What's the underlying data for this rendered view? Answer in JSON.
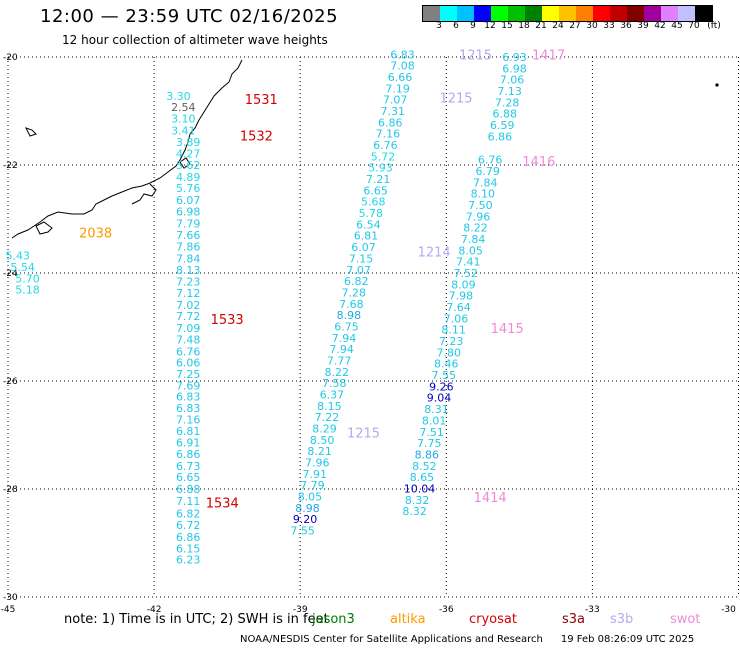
{
  "header": {
    "title": "12:00 — 23:59 UTC 02/16/2025",
    "subtitle": "12 hour collection of altimeter wave heights"
  },
  "legend": {
    "unit": "(ft)",
    "colors": [
      "#808080",
      "#00ffff",
      "#00c0ff",
      "#0000ff",
      "#00ff00",
      "#00c000",
      "#008000",
      "#ffff00",
      "#ffc000",
      "#ff8000",
      "#ff0000",
      "#c00000",
      "#800000",
      "#a000a0",
      "#e080ff",
      "#c0c0ff",
      "#000000"
    ],
    "labels": [
      "3",
      "6",
      "9",
      "12",
      "15",
      "18",
      "21",
      "24",
      "27",
      "30",
      "33",
      "36",
      "39",
      "42",
      "45",
      "70"
    ]
  },
  "axes": {
    "x_ticks": [
      "-45",
      "-42",
      "-39",
      "-36",
      "-33",
      "-30"
    ],
    "y_ticks": [
      "-20",
      "-22",
      "-24",
      "-26",
      "-28",
      "-30"
    ]
  },
  "tracks": [
    {
      "color": "#22c8e6",
      "points": [
        {
          "lon": -41.5,
          "lat": -20.72,
          "v": "3.30",
          "c": "#22d8e6"
        },
        {
          "lon": -41.4,
          "lat": -20.93,
          "v": "2.54",
          "c": "#606060"
        },
        {
          "lon": -41.4,
          "lat": -21.14,
          "v": "3.10",
          "c": "#22d8e6"
        },
        {
          "lon": -41.4,
          "lat": -21.36,
          "v": "3.41",
          "c": "#22d8e6"
        },
        {
          "lon": -41.3,
          "lat": -21.57,
          "v": "3.89",
          "c": "#22d8e6"
        },
        {
          "lon": -41.3,
          "lat": -21.79,
          "v": "4.27",
          "c": "#22d8e6"
        },
        {
          "lon": -41.3,
          "lat": -22.0,
          "v": "5.62",
          "c": "#22d8e6"
        },
        {
          "lon": -41.3,
          "lat": -22.22,
          "v": "4.89",
          "c": "#22d8e6"
        },
        {
          "lon": -41.3,
          "lat": -22.43,
          "v": "5.76",
          "c": "#22d8e6"
        },
        {
          "lon": -41.3,
          "lat": -22.65,
          "v": "6.07",
          "c": "#22c8e6"
        },
        {
          "lon": -41.3,
          "lat": -22.86,
          "v": "6.98",
          "c": "#22c8e6"
        },
        {
          "lon": -41.3,
          "lat": -23.08,
          "v": "7.79",
          "c": "#22c8e6"
        },
        {
          "lon": -41.3,
          "lat": -23.3,
          "v": "7.66",
          "c": "#22c8e6"
        },
        {
          "lon": -41.3,
          "lat": -23.51,
          "v": "7.86",
          "c": "#22c8e6"
        },
        {
          "lon": -41.3,
          "lat": -23.73,
          "v": "7.84",
          "c": "#22c8e6"
        },
        {
          "lon": -41.3,
          "lat": -23.94,
          "v": "8.13",
          "c": "#22c8e6"
        },
        {
          "lon": -41.3,
          "lat": -24.16,
          "v": "7.23",
          "c": "#22c8e6"
        },
        {
          "lon": -41.3,
          "lat": -24.37,
          "v": "7.12",
          "c": "#22c8e6"
        },
        {
          "lon": -41.3,
          "lat": -24.59,
          "v": "7.02",
          "c": "#22c8e6"
        },
        {
          "lon": -41.3,
          "lat": -24.8,
          "v": "7.72",
          "c": "#22c8e6"
        },
        {
          "lon": -41.3,
          "lat": -25.02,
          "v": "7.09",
          "c": "#22c8e6"
        },
        {
          "lon": -41.3,
          "lat": -25.23,
          "v": "7.48",
          "c": "#22c8e6"
        },
        {
          "lon": -41.3,
          "lat": -25.45,
          "v": "6.76",
          "c": "#22c8e6"
        },
        {
          "lon": -41.3,
          "lat": -25.66,
          "v": "6.06",
          "c": "#22c8e6"
        },
        {
          "lon": -41.3,
          "lat": -25.87,
          "v": "7.25",
          "c": "#22c8e6"
        },
        {
          "lon": -41.3,
          "lat": -26.08,
          "v": "7.69",
          "c": "#22c8e6"
        },
        {
          "lon": -41.3,
          "lat": -26.29,
          "v": "6.83",
          "c": "#22c8e6"
        },
        {
          "lon": -41.3,
          "lat": -26.5,
          "v": "6.83",
          "c": "#22c8e6"
        },
        {
          "lon": -41.3,
          "lat": -26.71,
          "v": "7.16",
          "c": "#22c8e6"
        },
        {
          "lon": -41.3,
          "lat": -26.93,
          "v": "6.81",
          "c": "#22c8e6"
        },
        {
          "lon": -41.3,
          "lat": -27.14,
          "v": "6.91",
          "c": "#22c8e6"
        },
        {
          "lon": -41.3,
          "lat": -27.35,
          "v": "6.86",
          "c": "#22c8e6"
        },
        {
          "lon": -41.3,
          "lat": -27.57,
          "v": "6.73",
          "c": "#22c8e6"
        },
        {
          "lon": -41.3,
          "lat": -27.78,
          "v": "6.65",
          "c": "#22c8e6"
        },
        {
          "lon": -41.3,
          "lat": -28.0,
          "v": "6.88",
          "c": "#22c8e6"
        },
        {
          "lon": -41.3,
          "lat": -28.22,
          "v": "7.11",
          "c": "#22c8e6"
        },
        {
          "lon": -41.3,
          "lat": -28.45,
          "v": "6.82",
          "c": "#22c8e6"
        },
        {
          "lon": -41.3,
          "lat": -28.67,
          "v": "6.72",
          "c": "#22c8e6"
        },
        {
          "lon": -41.3,
          "lat": -28.89,
          "v": "6.86",
          "c": "#22c8e6"
        },
        {
          "lon": -41.3,
          "lat": -29.1,
          "v": "6.15",
          "c": "#22c8e6"
        },
        {
          "lon": -41.3,
          "lat": -29.31,
          "v": "6.23",
          "c": "#22c8e6"
        }
      ]
    },
    {
      "color": "#22d8e6",
      "points": [
        {
          "lon": -44.8,
          "lat": -23.68,
          "v": "5.43",
          "c": "#22d8e6"
        },
        {
          "lon": -44.7,
          "lat": -23.89,
          "v": "5.54",
          "c": "#22d8e6"
        },
        {
          "lon": -44.6,
          "lat": -24.1,
          "v": "5.70",
          "c": "#22d8e6"
        },
        {
          "lon": -44.6,
          "lat": -24.31,
          "v": "5.18",
          "c": "#22d8e6"
        }
      ]
    },
    {
      "color": "#22c8e6",
      "points": [
        {
          "lon": -36.9,
          "lat": -19.95,
          "v": "6.83",
          "c": "#22c8e6"
        },
        {
          "lon": -36.9,
          "lat": -20.16,
          "v": "7.08",
          "c": "#22c8e6"
        },
        {
          "lon": -36.95,
          "lat": -20.37,
          "v": "6.66",
          "c": "#22c8e6"
        },
        {
          "lon": -37.0,
          "lat": -20.58,
          "v": "7.19",
          "c": "#22c8e6"
        },
        {
          "lon": -37.05,
          "lat": -20.79,
          "v": "7.07",
          "c": "#22c8e6"
        },
        {
          "lon": -37.1,
          "lat": -21.0,
          "v": "7.31",
          "c": "#22c8e6"
        },
        {
          "lon": -37.15,
          "lat": -21.21,
          "v": "6.86",
          "c": "#22c8e6"
        },
        {
          "lon": -37.2,
          "lat": -21.42,
          "v": "7.16",
          "c": "#22c8e6"
        },
        {
          "lon": -37.25,
          "lat": -21.63,
          "v": "6.76",
          "c": "#22c8e6"
        },
        {
          "lon": -37.3,
          "lat": -21.84,
          "v": "5.72",
          "c": "#22d8e6"
        },
        {
          "lon": -37.35,
          "lat": -22.05,
          "v": "5.93",
          "c": "#22d8e6"
        },
        {
          "lon": -37.4,
          "lat": -22.26,
          "v": "7.21",
          "c": "#22c8e6"
        },
        {
          "lon": -37.45,
          "lat": -22.47,
          "v": "6.65",
          "c": "#22c8e6"
        },
        {
          "lon": -37.5,
          "lat": -22.68,
          "v": "5.68",
          "c": "#22d8e6"
        },
        {
          "lon": -37.55,
          "lat": -22.89,
          "v": "5.78",
          "c": "#22d8e6"
        },
        {
          "lon": -37.6,
          "lat": -23.1,
          "v": "6.54",
          "c": "#22c8e6"
        },
        {
          "lon": -37.65,
          "lat": -23.31,
          "v": "6.81",
          "c": "#22c8e6"
        },
        {
          "lon": -37.7,
          "lat": -23.52,
          "v": "6.07",
          "c": "#22c8e6"
        },
        {
          "lon": -37.75,
          "lat": -23.73,
          "v": "7.15",
          "c": "#22c8e6"
        },
        {
          "lon": -37.8,
          "lat": -23.94,
          "v": "7.07",
          "c": "#22c8e6"
        },
        {
          "lon": -37.85,
          "lat": -24.15,
          "v": "6.82",
          "c": "#22c8e6"
        },
        {
          "lon": -37.9,
          "lat": -24.36,
          "v": "7.28",
          "c": "#22c8e6"
        },
        {
          "lon": -37.95,
          "lat": -24.57,
          "v": "7.68",
          "c": "#22c8e6"
        },
        {
          "lon": -38.0,
          "lat": -24.78,
          "v": "8.98",
          "c": "#22a8e6"
        },
        {
          "lon": -38.05,
          "lat": -24.99,
          "v": "6.75",
          "c": "#22c8e6"
        },
        {
          "lon": -38.1,
          "lat": -25.2,
          "v": "7.94",
          "c": "#22c8e6"
        },
        {
          "lon": -38.15,
          "lat": -25.41,
          "v": "7.94",
          "c": "#22c8e6"
        },
        {
          "lon": -38.2,
          "lat": -25.62,
          "v": "7.77",
          "c": "#22c8e6"
        },
        {
          "lon": -38.25,
          "lat": -25.83,
          "v": "8.22",
          "c": "#22c8e6"
        },
        {
          "lon": -38.3,
          "lat": -26.04,
          "v": "7.58",
          "c": "#22c8e6"
        },
        {
          "lon": -38.35,
          "lat": -26.25,
          "v": "6.37",
          "c": "#22c8e6"
        },
        {
          "lon": -38.4,
          "lat": -26.46,
          "v": "8.15",
          "c": "#22c8e6"
        },
        {
          "lon": -38.45,
          "lat": -26.67,
          "v": "7.22",
          "c": "#22c8e6"
        },
        {
          "lon": -38.5,
          "lat": -26.88,
          "v": "8.29",
          "c": "#22c8e6"
        },
        {
          "lon": -38.55,
          "lat": -27.09,
          "v": "8.50",
          "c": "#22c8e6"
        },
        {
          "lon": -38.6,
          "lat": -27.3,
          "v": "8.21",
          "c": "#22c8e6"
        },
        {
          "lon": -38.65,
          "lat": -27.51,
          "v": "7.96",
          "c": "#22c8e6"
        },
        {
          "lon": -38.7,
          "lat": -27.72,
          "v": "7.91",
          "c": "#22c8e6"
        },
        {
          "lon": -38.75,
          "lat": -27.93,
          "v": "7.79",
          "c": "#22c8e6"
        },
        {
          "lon": -38.8,
          "lat": -28.14,
          "v": "8.05",
          "c": "#22c8e6"
        },
        {
          "lon": -38.85,
          "lat": -28.35,
          "v": "8.98",
          "c": "#22a8e6"
        },
        {
          "lon": -38.9,
          "lat": -28.56,
          "v": "9.20",
          "c": "#0000c0"
        },
        {
          "lon": -38.95,
          "lat": -28.77,
          "v": "7.55",
          "c": "#22c8e6"
        }
      ]
    },
    {
      "color": "#22c8e6",
      "points": [
        {
          "lon": -34.6,
          "lat": -20.0,
          "v": "6.93",
          "c": "#22c8e6"
        },
        {
          "lon": -34.6,
          "lat": -20.21,
          "v": "6.98",
          "c": "#22c8e6"
        },
        {
          "lon": -34.65,
          "lat": -20.42,
          "v": "7.06",
          "c": "#22c8e6"
        },
        {
          "lon": -34.7,
          "lat": -20.63,
          "v": "7.13",
          "c": "#22c8e6"
        },
        {
          "lon": -34.75,
          "lat": -20.84,
          "v": "7.28",
          "c": "#22c8e6"
        },
        {
          "lon": -34.8,
          "lat": -21.05,
          "v": "6.88",
          "c": "#22c8e6"
        },
        {
          "lon": -34.85,
          "lat": -21.26,
          "v": "6.59",
          "c": "#22c8e6"
        },
        {
          "lon": -34.9,
          "lat": -21.47,
          "v": "6.86",
          "c": "#22c8e6"
        },
        {
          "lon": -35.1,
          "lat": -21.9,
          "v": "6.76",
          "c": "#22c8e6"
        },
        {
          "lon": -35.15,
          "lat": -22.11,
          "v": "6.79",
          "c": "#22c8e6"
        },
        {
          "lon": -35.2,
          "lat": -22.32,
          "v": "7.84",
          "c": "#22c8e6"
        },
        {
          "lon": -35.25,
          "lat": -22.53,
          "v": "8.10",
          "c": "#22c8e6"
        },
        {
          "lon": -35.3,
          "lat": -22.74,
          "v": "7.50",
          "c": "#22c8e6"
        },
        {
          "lon": -35.35,
          "lat": -22.95,
          "v": "7.96",
          "c": "#22c8e6"
        },
        {
          "lon": -35.4,
          "lat": -23.16,
          "v": "8.22",
          "c": "#22c8e6"
        },
        {
          "lon": -35.45,
          "lat": -23.37,
          "v": "7.84",
          "c": "#22c8e6"
        },
        {
          "lon": -35.5,
          "lat": -23.58,
          "v": "8.05",
          "c": "#22c8e6"
        },
        {
          "lon": -35.55,
          "lat": -23.79,
          "v": "7.41",
          "c": "#22c8e6"
        },
        {
          "lon": -35.6,
          "lat": -24.0,
          "v": "7.52",
          "c": "#22c8e6"
        },
        {
          "lon": -35.65,
          "lat": -24.21,
          "v": "8.09",
          "c": "#22c8e6"
        },
        {
          "lon": -35.7,
          "lat": -24.42,
          "v": "7.98",
          "c": "#22c8e6"
        },
        {
          "lon": -35.75,
          "lat": -24.63,
          "v": "7.64",
          "c": "#22c8e6"
        },
        {
          "lon": -35.8,
          "lat": -24.84,
          "v": "7.06",
          "c": "#22c8e6"
        },
        {
          "lon": -35.85,
          "lat": -25.05,
          "v": "8.11",
          "c": "#22c8e6"
        },
        {
          "lon": -35.9,
          "lat": -25.26,
          "v": "7.23",
          "c": "#22c8e6"
        },
        {
          "lon": -35.95,
          "lat": -25.47,
          "v": "7.80",
          "c": "#22c8e6"
        },
        {
          "lon": -36.0,
          "lat": -25.68,
          "v": "8.46",
          "c": "#22c8e6"
        },
        {
          "lon": -36.05,
          "lat": -25.89,
          "v": "7.55",
          "c": "#22c8e6"
        },
        {
          "lon": -36.1,
          "lat": -26.1,
          "v": "9.26",
          "c": "#0000c0"
        },
        {
          "lon": -36.15,
          "lat": -26.31,
          "v": "9.04",
          "c": "#0000c0"
        },
        {
          "lon": -36.2,
          "lat": -26.52,
          "v": "8.31",
          "c": "#22c8e6"
        },
        {
          "lon": -36.25,
          "lat": -26.73,
          "v": "8.01",
          "c": "#22c8e6"
        },
        {
          "lon": -36.3,
          "lat": -26.94,
          "v": "7.51",
          "c": "#22c8e6"
        },
        {
          "lon": -36.35,
          "lat": -27.15,
          "v": "7.75",
          "c": "#22c8e6"
        },
        {
          "lon": -36.4,
          "lat": -27.36,
          "v": "8.86",
          "c": "#22a8e6"
        },
        {
          "lon": -36.45,
          "lat": -27.57,
          "v": "8.52",
          "c": "#22c8e6"
        },
        {
          "lon": -36.5,
          "lat": -27.78,
          "v": "8.65",
          "c": "#22c8e6"
        },
        {
          "lon": -36.55,
          "lat": -27.99,
          "v": "10.04",
          "c": "#0000c0"
        },
        {
          "lon": -36.6,
          "lat": -28.2,
          "v": "8.32",
          "c": "#22c8e6"
        },
        {
          "lon": -36.65,
          "lat": -28.41,
          "v": "8.32",
          "c": "#22c8e6"
        }
      ]
    }
  ],
  "time_labels": [
    {
      "lon": -39.8,
      "lat": -20.78,
      "text": "1531",
      "color": "#d40000"
    },
    {
      "lon": -39.9,
      "lat": -21.45,
      "text": "1532",
      "color": "#d40000"
    },
    {
      "lon": -43.2,
      "lat": -23.25,
      "text": "2038",
      "color": "#ff9900"
    },
    {
      "lon": -40.5,
      "lat": -24.85,
      "text": "1533",
      "color": "#d40000"
    },
    {
      "lon": -40.6,
      "lat": -28.25,
      "text": "1534",
      "color": "#d40000"
    },
    {
      "lon": -35.4,
      "lat": -19.95,
      "text": "1215",
      "color": "#b8a8f0"
    },
    {
      "lon": -35.8,
      "lat": -20.75,
      "text": "1215",
      "color": "#b8a8f0"
    },
    {
      "lon": -36.25,
      "lat": -23.6,
      "text": "1214",
      "color": "#b8a8f0"
    },
    {
      "lon": -37.7,
      "lat": -26.95,
      "text": "1215",
      "color": "#b8a8f0"
    },
    {
      "lon": -33.9,
      "lat": -19.95,
      "text": "1417",
      "color": "#f08ad8"
    },
    {
      "lon": -34.1,
      "lat": -21.93,
      "text": "1416",
      "color": "#f08ad8"
    },
    {
      "lon": -34.75,
      "lat": -25.02,
      "text": "1415",
      "color": "#f08ad8"
    },
    {
      "lon": -35.1,
      "lat": -28.15,
      "text": "1414",
      "color": "#f08ad8"
    }
  ],
  "note": "note:  1) Time is in UTC; 2) SWH is in feet",
  "satellites": [
    {
      "name": "jason3",
      "color": "#007a00"
    },
    {
      "name": "altika",
      "color": "#ff9900"
    },
    {
      "name": "cryosat",
      "color": "#d40000"
    },
    {
      "name": "s3a",
      "color": "#8a0000"
    },
    {
      "name": "s3b",
      "color": "#b8a8f0"
    },
    {
      "name": "swot",
      "color": "#f08ad8"
    }
  ],
  "footer": {
    "credit": "NOAA/NESDIS Center for Satellite Applications and Research",
    "timestamp": "19 Feb 08:26:09 UTC 2025"
  }
}
